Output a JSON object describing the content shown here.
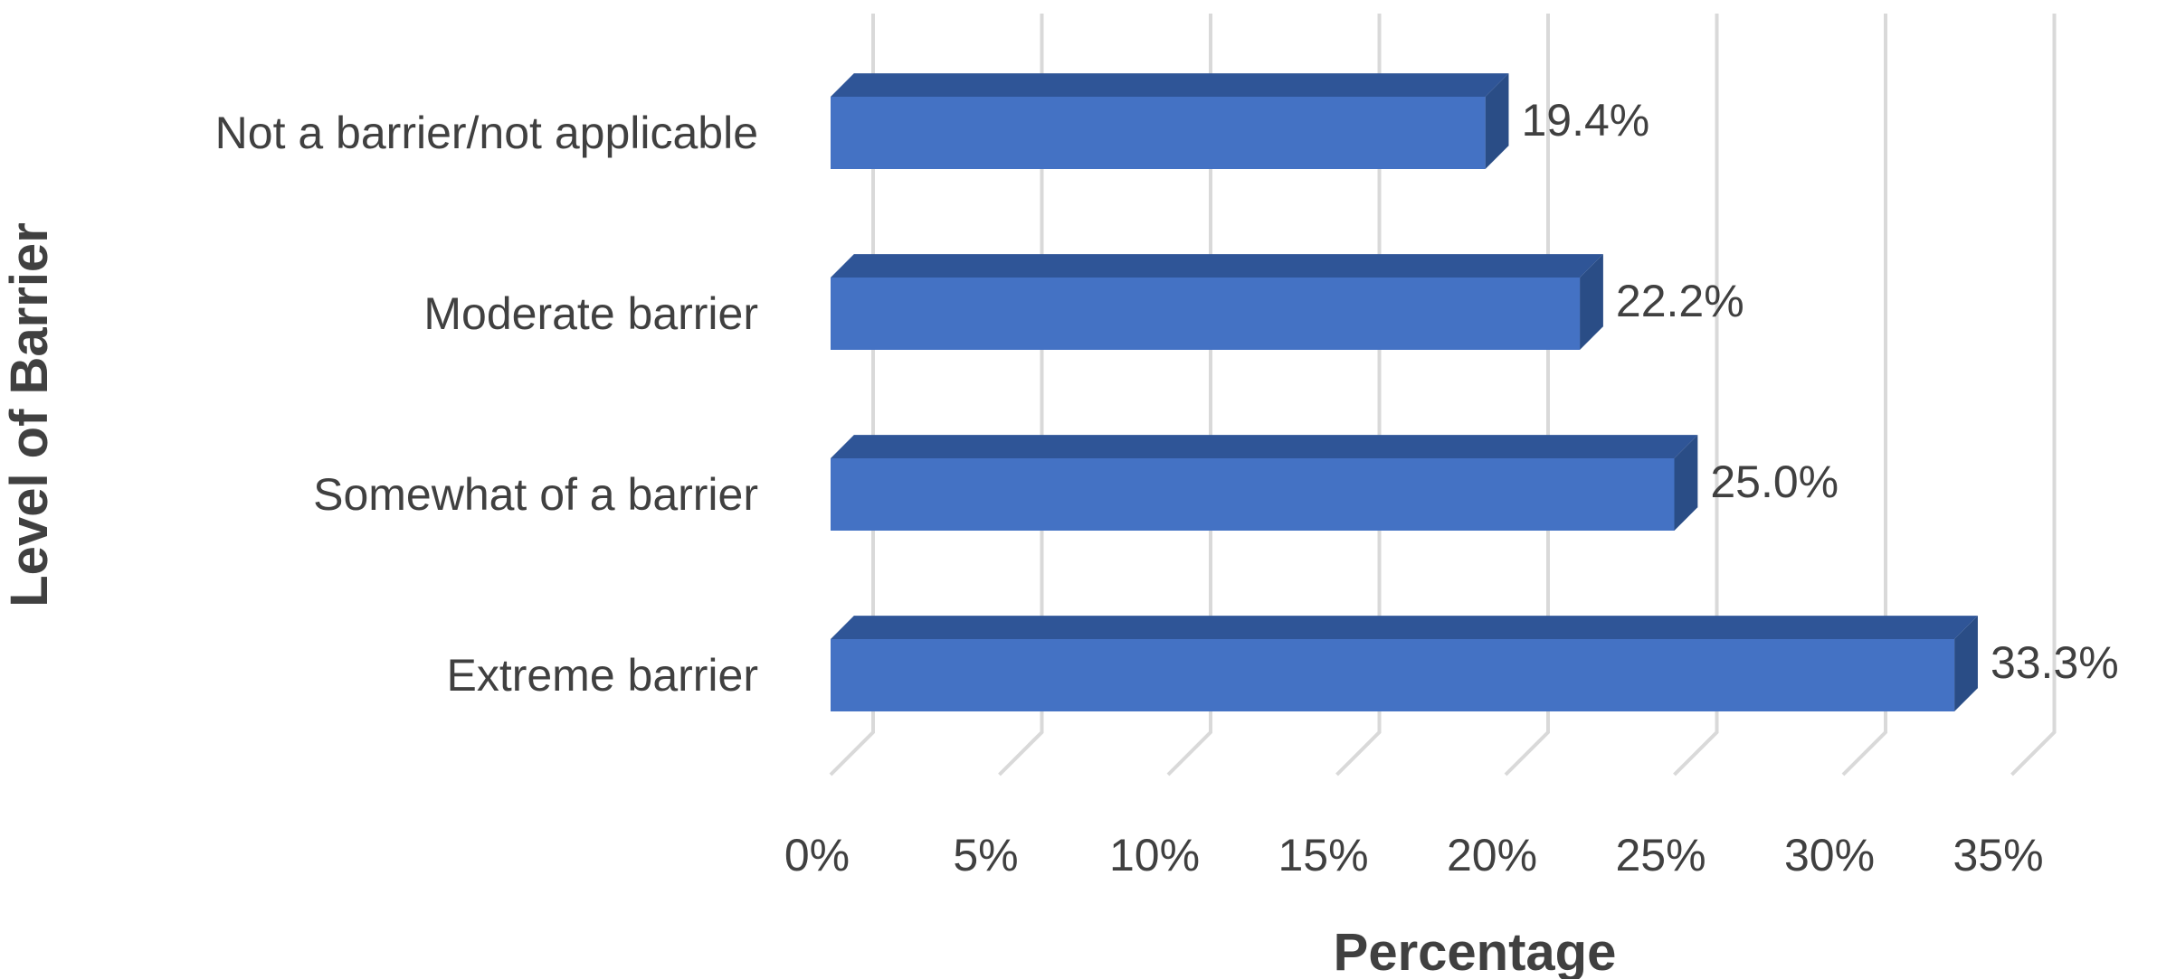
{
  "chart_data": {
    "type": "bar",
    "orientation": "horizontal",
    "style": "3d-clustered",
    "categories": [
      "Not a barrier/not applicable",
      "Moderate barrier",
      "Somewhat of a barrier",
      "Extreme barrier"
    ],
    "values": [
      19.4,
      22.2,
      25.0,
      33.3
    ],
    "data_labels": [
      "19.4%",
      "22.2%",
      "25.0%",
      "33.3%"
    ],
    "xlabel": "Percentage",
    "ylabel": "Level of Barrier",
    "xlim": [
      0,
      35
    ],
    "x_ticks": [
      0,
      5,
      10,
      15,
      20,
      25,
      30,
      35
    ],
    "x_tick_labels": [
      "0%",
      "5%",
      "10%",
      "15%",
      "20%",
      "25%",
      "30%",
      "35%"
    ],
    "grid": true,
    "legend": "none",
    "colors": {
      "bar_front": "#4472c4",
      "bar_top": "#2f5597",
      "bar_side": "#2a4d86",
      "gridline": "#d9d9d9",
      "text": "#404040"
    }
  }
}
